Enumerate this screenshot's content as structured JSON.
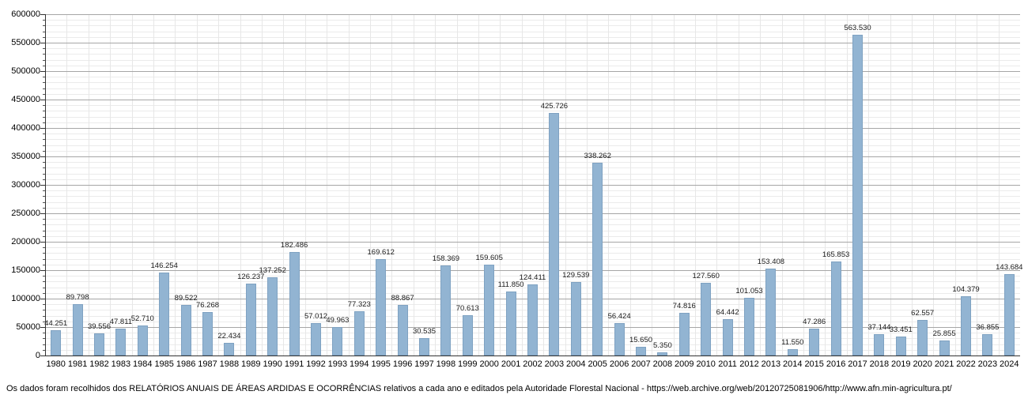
{
  "caption": {
    "text": "Os dados foram recolhidos dos RELATÓRIOS ANUAIS DE ÁREAS ARDIDAS E OCORRÊNCIAS relativos a cada ano e editados pela Autoridade Florestal Nacional - https://web.archive.org/web/20120725081906/http://www.afn.min-agricultura.pt/"
  },
  "colors": {
    "bar_fill": "#92b4d2",
    "bar_border": "#7fa2c2",
    "grid_major": "#a6a6a6",
    "grid_minor": "#ebebeb",
    "grid_vertical": "#e7e7e7",
    "axis": "#333333"
  },
  "chart_data": {
    "type": "bar",
    "title": "",
    "xlabel": "",
    "ylabel": "",
    "ylim": [
      0,
      600000
    ],
    "ytick_step": 50000,
    "yminor_step": 10000,
    "grid": true,
    "legend": "none",
    "categories": [
      "1980",
      "1981",
      "1982",
      "1983",
      "1984",
      "1985",
      "1986",
      "1987",
      "1988",
      "1989",
      "1990",
      "1991",
      "1992",
      "1993",
      "1994",
      "1995",
      "1996",
      "1997",
      "1998",
      "1999",
      "2000",
      "2001",
      "2002",
      "2003",
      "2004",
      "2005",
      "2006",
      "2007",
      "2008",
      "2009",
      "2010",
      "2011",
      "2012",
      "2013",
      "2014",
      "2015",
      "2016",
      "2017",
      "2018",
      "2019",
      "2020",
      "2021",
      "2022",
      "2023",
      "2024"
    ],
    "values": [
      44251,
      89798,
      39556,
      47811,
      52710,
      146254,
      89522,
      76268,
      22434,
      126237,
      137252,
      182486,
      57012,
      49963,
      77323,
      169612,
      88867,
      30535,
      158369,
      70613,
      159605,
      111850,
      124411,
      425726,
      129539,
      338262,
      56424,
      15650,
      5350,
      74816,
      127560,
      64442,
      101053,
      153408,
      11550,
      47286,
      165853,
      563530,
      37144,
      33451,
      62557,
      25855,
      104379,
      36855,
      143684
    ],
    "labels": [
      "44.251",
      "89.798",
      "39.556",
      "47.811",
      "52.710",
      "146.254",
      "89.522",
      "76.268",
      "22.434",
      "126.237",
      "137.252",
      "182.486",
      "57.012",
      "49.963",
      "77.323",
      "169.612",
      "88.867",
      "30.535",
      "158.369",
      "70.613",
      "159.605",
      "111.850",
      "124.411",
      "425.726",
      "129.539",
      "338.262",
      "56.424",
      "15.650",
      "5.350",
      "74.816",
      "127.560",
      "64.442",
      "101.053",
      "153.408",
      "11.550",
      "47.286",
      "165.853",
      "563.530",
      "37.144",
      "33.451",
      "62.557",
      "25.855",
      "104.379",
      "36.855",
      "143.684"
    ]
  }
}
